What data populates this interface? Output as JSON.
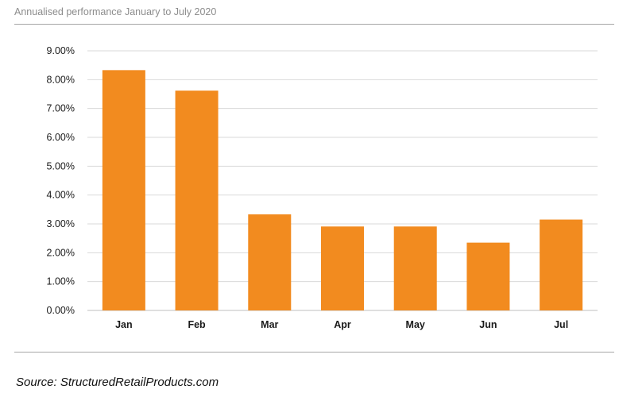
{
  "title": "Annualised performance January to July 2020",
  "source": "Source: StructuredRetailProducts.com",
  "colors": {
    "bar": "#f28b1f",
    "grid": "#d9d9d9",
    "axis": "#bfbfbf"
  },
  "chart_data": {
    "type": "bar",
    "title": "Annualised performance January to July 2020",
    "categories": [
      "Jan",
      "Feb",
      "Mar",
      "Apr",
      "May",
      "Jun",
      "Jul"
    ],
    "values": [
      8.33,
      7.62,
      3.33,
      2.91,
      2.91,
      2.35,
      3.15
    ],
    "ylim": [
      0,
      9
    ],
    "yticks": [
      "0.00%",
      "1.00%",
      "2.00%",
      "3.00%",
      "4.00%",
      "5.00%",
      "6.00%",
      "7.00%",
      "8.00%",
      "9.00%"
    ],
    "xlabel": "",
    "ylabel": "",
    "grid": true,
    "legend": "none"
  }
}
